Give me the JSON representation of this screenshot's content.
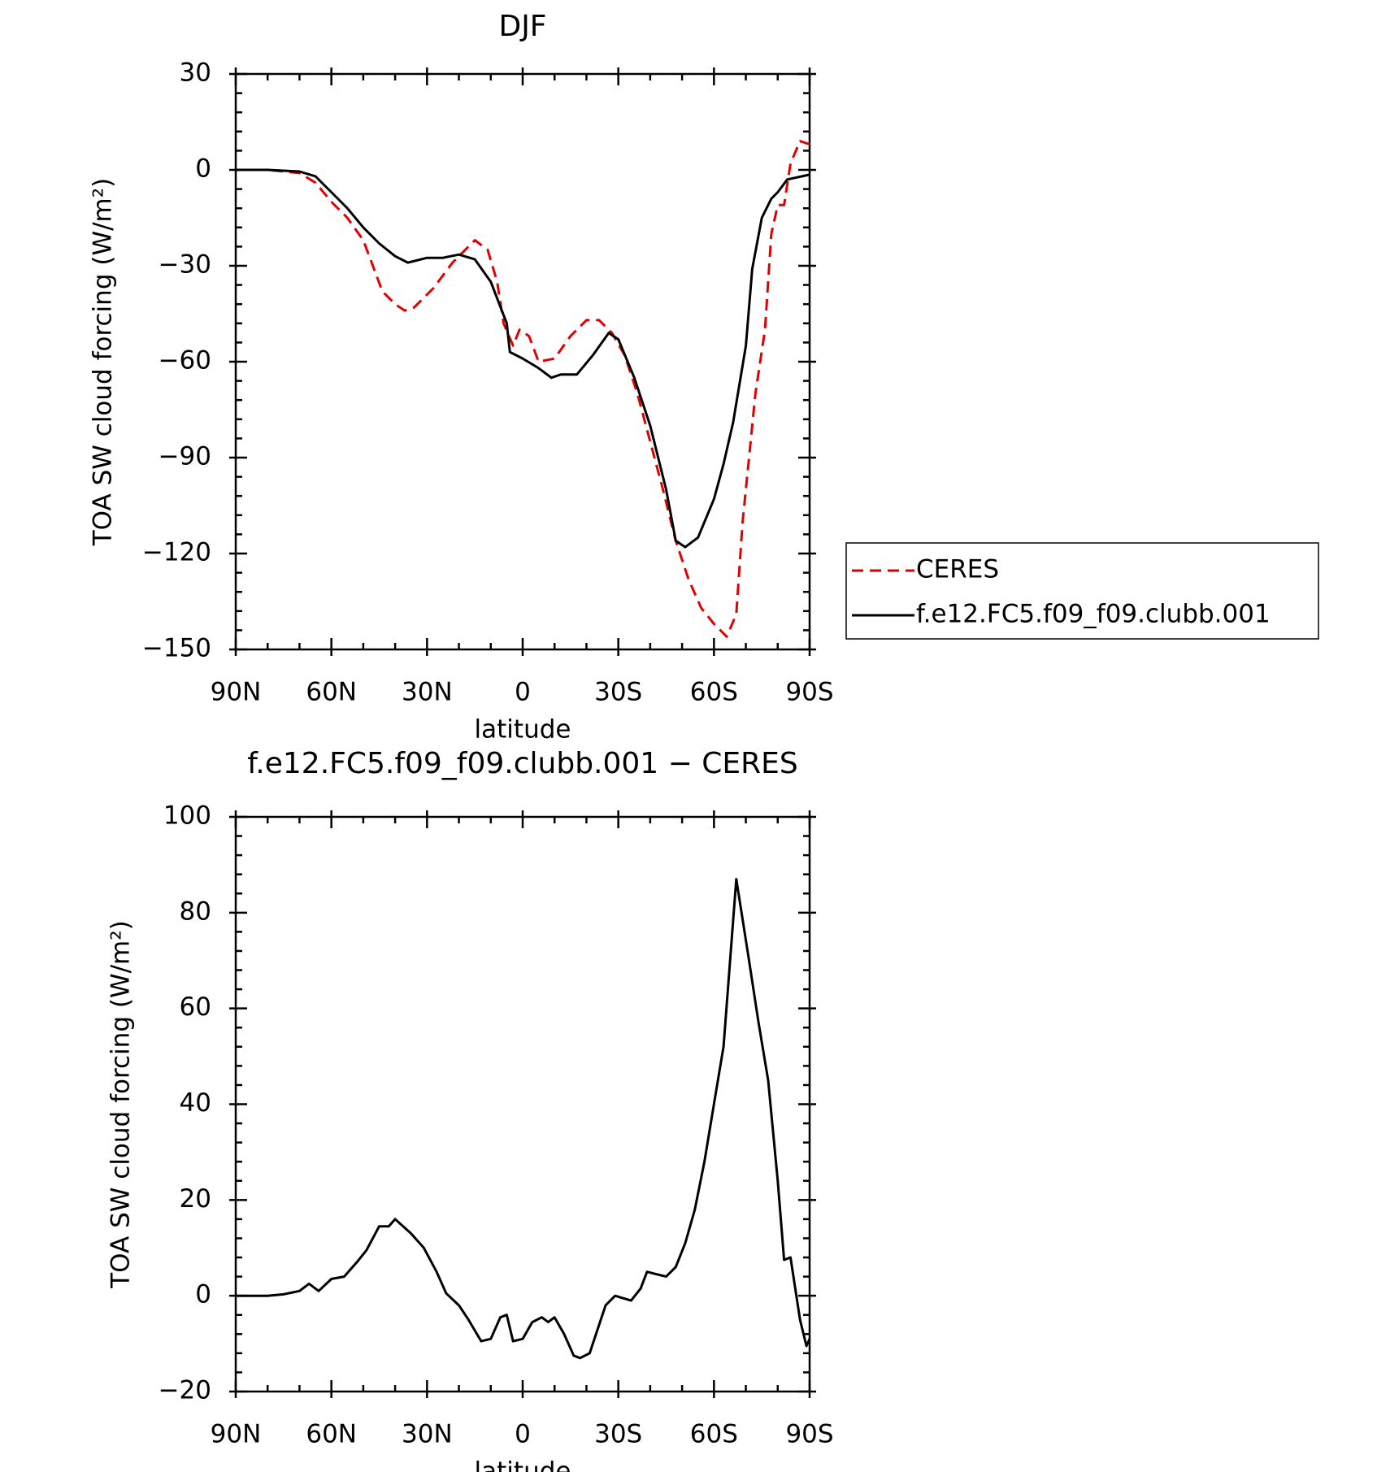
{
  "chart_data": [
    {
      "type": "line",
      "title": "DJF",
      "xlabel": "latitude",
      "ylabel": "TOA SW cloud forcing (W/m²)",
      "xlim": [
        90,
        -90
      ],
      "xticks": [
        {
          "value": 90,
          "label": "90N"
        },
        {
          "value": 60,
          "label": "60N"
        },
        {
          "value": 30,
          "label": "30N"
        },
        0,
        {
          "value": -30,
          "label": "30S"
        },
        {
          "value": -60,
          "label": "60S"
        },
        {
          "value": -90,
          "label": "90S"
        }
      ],
      "ylim": [
        -150,
        30
      ],
      "yticks": [
        {
          "value": -150,
          "label": "−150"
        },
        {
          "value": -120,
          "label": "−120"
        },
        {
          "value": -90,
          "label": "−90"
        },
        {
          "value": -60,
          "label": "−60"
        },
        {
          "value": -30,
          "label": "−30"
        },
        0,
        30
      ],
      "legend": "right",
      "series": [
        {
          "name": "CERES",
          "color": "#e00000",
          "dash": true,
          "x": [
            90,
            80,
            70,
            65,
            60,
            55,
            50,
            47,
            44,
            40,
            37,
            34,
            28,
            22,
            15,
            11,
            8,
            6,
            3,
            1,
            -2,
            -5,
            -10,
            -15,
            -20,
            -24,
            -28,
            -32,
            -36,
            -40,
            -44,
            -48,
            -52,
            -56,
            -60,
            -64,
            -67,
            -69,
            -71,
            -73,
            -76,
            -78,
            -80,
            -82,
            -84,
            -87,
            -90
          ],
          "values": [
            0,
            0,
            -1,
            -4,
            -10,
            -15,
            -22,
            -30,
            -38,
            -42,
            -44,
            -43,
            -37,
            -29,
            -22,
            -25,
            -35,
            -48,
            -55,
            -50,
            -52,
            -60,
            -59,
            -52,
            -47,
            -47,
            -51,
            -58,
            -70,
            -85,
            -100,
            -116,
            -128,
            -137,
            -142,
            -146,
            -139,
            -110,
            -90,
            -70,
            -50,
            -20,
            -11,
            -11,
            2,
            9,
            8
          ]
        },
        {
          "name": "f.e12.FC5.f09_f09.clubb.001",
          "color": "#000000",
          "dash": false,
          "x": [
            90,
            80,
            70,
            65,
            60,
            55,
            50,
            45,
            40,
            36,
            30,
            25,
            20,
            15,
            10,
            5,
            4,
            0,
            -5,
            -9,
            -12,
            -17,
            -22,
            -27,
            -30,
            -35,
            -40,
            -45,
            -48,
            -51,
            -55,
            -60,
            -63,
            -66,
            -70,
            -72,
            -75,
            -78,
            -80,
            -83,
            -90
          ],
          "values": [
            0,
            0,
            -0.5,
            -2,
            -7,
            -12,
            -18,
            -23,
            -27,
            -29,
            -27.5,
            -27.5,
            -26.5,
            -28,
            -35,
            -48,
            -57,
            -59,
            -62,
            -65,
            -64,
            -64,
            -58,
            -51,
            -53,
            -65,
            -80,
            -100,
            -116,
            -118,
            -115,
            -103,
            -92,
            -79,
            -55,
            -31,
            -15,
            -9,
            -7,
            -3,
            -1.5
          ]
        }
      ]
    },
    {
      "type": "line",
      "title": "f.e12.FC5.f09_f09.clubb.001 − CERES",
      "xlabel": "latitude",
      "ylabel": "TOA SW cloud forcing (W/m²)",
      "xlim": [
        90,
        -90
      ],
      "xticks": [
        {
          "value": 90,
          "label": "90N"
        },
        {
          "value": 60,
          "label": "60N"
        },
        {
          "value": 30,
          "label": "30N"
        },
        0,
        {
          "value": -30,
          "label": "30S"
        },
        {
          "value": -60,
          "label": "60S"
        },
        {
          "value": -90,
          "label": "90S"
        }
      ],
      "ylim": [
        -20,
        100
      ],
      "yticks": [
        {
          "value": -20,
          "label": "−20"
        },
        0,
        20,
        40,
        60,
        80,
        100
      ],
      "series": [
        {
          "color": "#000000",
          "dash": false,
          "x": [
            90,
            80,
            75,
            70,
            67,
            64,
            60,
            56,
            52,
            49,
            45,
            42,
            40,
            35,
            31,
            27,
            24,
            20,
            17,
            13,
            10,
            7,
            5,
            3,
            0,
            -3,
            -6,
            -8,
            -10,
            -13,
            -16,
            -18,
            -21,
            -26,
            -29,
            -34,
            -37,
            -39,
            -42,
            -45,
            -48,
            -51,
            -54,
            -57,
            -60,
            -63,
            -67,
            -71,
            -74,
            -77,
            -80,
            -82,
            -84,
            -87,
            -89,
            -90
          ],
          "values": [
            0,
            0,
            0.3,
            1,
            2.5,
            1,
            3.5,
            4,
            7,
            9.5,
            14.5,
            14.5,
            16,
            13,
            10,
            5,
            0.5,
            -2,
            -5,
            -9.5,
            -9,
            -4.5,
            -4,
            -9.5,
            -9,
            -5.5,
            -4.5,
            -5.5,
            -4.5,
            -8,
            -12.5,
            -13,
            -12,
            -2,
            0,
            -1,
            1.5,
            5,
            4.5,
            4,
            6,
            11,
            18,
            28,
            40,
            52,
            87,
            70,
            57,
            45,
            24,
            7.5,
            8,
            -5,
            -10.5,
            -9
          ]
        }
      ]
    }
  ]
}
